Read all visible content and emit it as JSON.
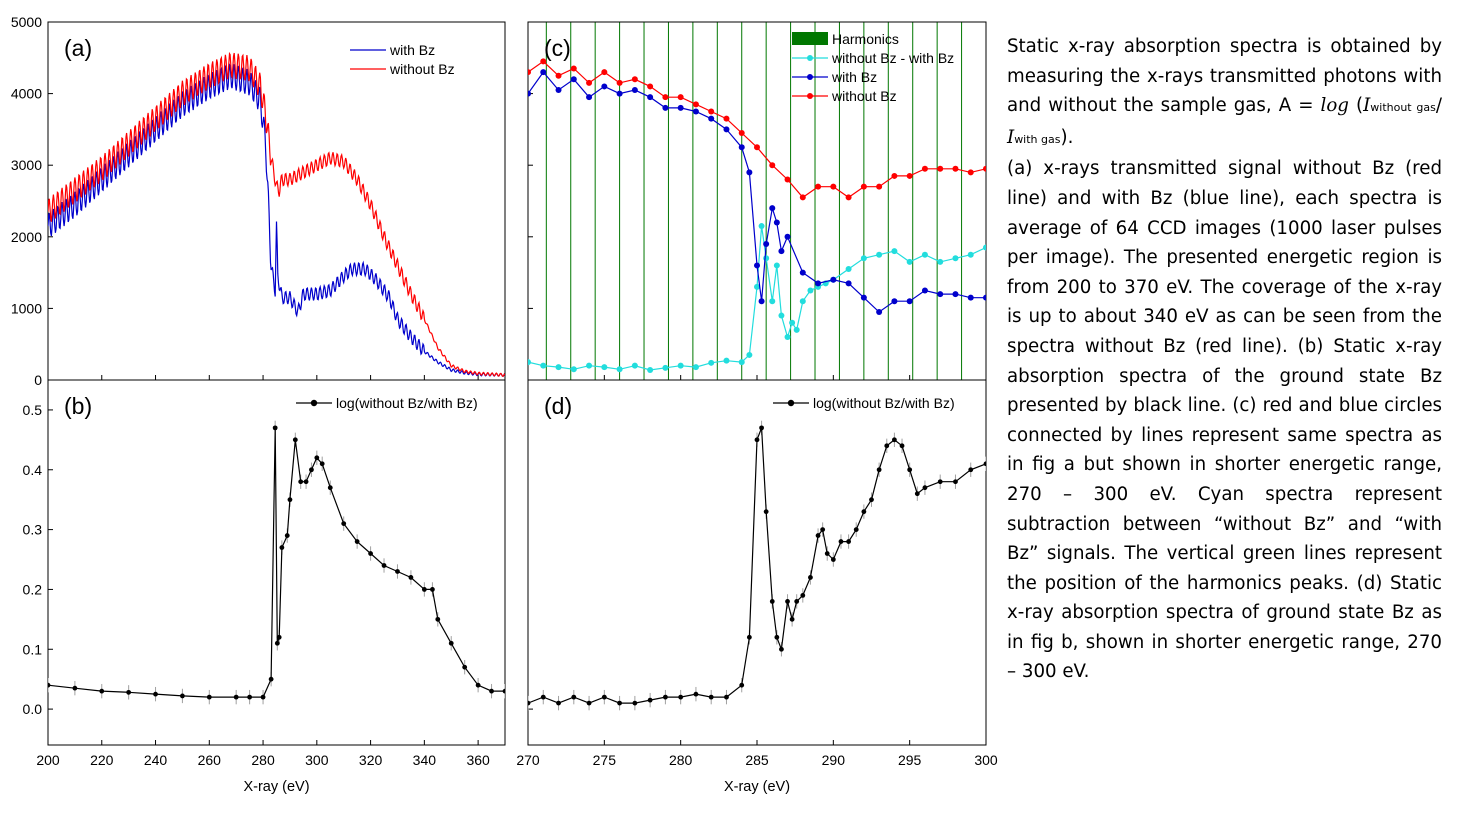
{
  "chart_data": [
    {
      "panel": "(a)",
      "type": "line",
      "xlim": [
        200,
        370
      ],
      "ylim": [
        0,
        5000
      ],
      "yticks": [
        "0",
        "1000",
        "2000",
        "3000",
        "4000",
        "5000"
      ],
      "xticks": [],
      "grid": false,
      "legend_placement": "top-right",
      "series": [
        {
          "name": "with Bz",
          "color": "#0000cc",
          "x": [
            200,
            210,
            220,
            230,
            240,
            250,
            260,
            268,
            275,
            279,
            281,
            283,
            284.5,
            285,
            285.5,
            287,
            290,
            293,
            295,
            300,
            305,
            310,
            313,
            318,
            322,
            327,
            330,
            335,
            340,
            345,
            350,
            355,
            360,
            370
          ],
          "y": [
            2150,
            2450,
            2800,
            3150,
            3500,
            3850,
            4100,
            4250,
            4150,
            3900,
            3300,
            1600,
            1250,
            2150,
            1450,
            1150,
            1150,
            950,
            1200,
            1200,
            1250,
            1450,
            1550,
            1550,
            1400,
            1150,
            850,
            600,
            400,
            250,
            140,
            100,
            80,
            70
          ]
        },
        {
          "name": "without Bz",
          "color": "#ff0000",
          "x": [
            200,
            210,
            220,
            230,
            240,
            250,
            260,
            268,
            275,
            279,
            281,
            283,
            285,
            286,
            287,
            290,
            295,
            300,
            305,
            310,
            315,
            320,
            325,
            330,
            335,
            340,
            345,
            350,
            355,
            360,
            370
          ],
          "y": [
            2350,
            2650,
            2950,
            3300,
            3650,
            4000,
            4250,
            4400,
            4350,
            4100,
            3700,
            3100,
            2700,
            2650,
            2800,
            2800,
            2900,
            3000,
            3100,
            3050,
            2800,
            2450,
            2000,
            1600,
            1200,
            850,
            450,
            200,
            120,
            90,
            70
          ]
        }
      ]
    },
    {
      "panel": "(b)",
      "type": "line",
      "xlim": [
        200,
        370
      ],
      "ylim": [
        -0.06,
        0.55
      ],
      "xticks": [
        "200",
        "220",
        "240",
        "260",
        "280",
        "300",
        "320",
        "340",
        "360"
      ],
      "yticks": [
        "0.0",
        "0.1",
        "0.2",
        "0.3",
        "0.4",
        "0.5"
      ],
      "xlabel": "X-ray (eV)",
      "grid": false,
      "legend_placement": "top-right",
      "series": [
        {
          "name": "log(without Bz/with Bz)",
          "color": "#000000",
          "x": [
            200,
            210,
            220,
            230,
            240,
            250,
            260,
            270,
            275,
            280,
            283,
            284.5,
            285.3,
            286,
            287,
            289,
            290,
            292,
            294,
            296,
            298,
            300,
            302,
            305,
            310,
            315,
            320,
            325,
            330,
            335,
            340,
            343,
            345,
            350,
            355,
            360,
            365,
            370
          ],
          "y": [
            0.04,
            0.035,
            0.03,
            0.028,
            0.025,
            0.022,
            0.02,
            0.02,
            0.02,
            0.02,
            0.05,
            0.47,
            0.11,
            0.12,
            0.27,
            0.29,
            0.35,
            0.45,
            0.38,
            0.38,
            0.4,
            0.42,
            0.41,
            0.37,
            0.31,
            0.28,
            0.26,
            0.24,
            0.23,
            0.22,
            0.2,
            0.2,
            0.15,
            0.11,
            0.07,
            0.04,
            0.03,
            0.03
          ]
        }
      ]
    },
    {
      "panel": "(c)",
      "type": "line",
      "xlim": [
        270,
        300
      ],
      "xticks": [],
      "grid": false,
      "legend_placement": "top-right",
      "harmonics_color": "#007700",
      "harmonics_x": [
        271.2,
        272.8,
        274.4,
        276.0,
        277.6,
        279.2,
        280.8,
        282.4,
        284.0,
        285.6,
        287.2,
        288.8,
        290.4,
        292.0,
        293.6,
        295.2,
        296.8,
        298.4,
        300.0
      ],
      "series": [
        {
          "name": "Harmonics",
          "color": "#007700",
          "type": "harmonic-lines"
        },
        {
          "name": "without Bz - with Bz",
          "color": "#22dddd",
          "x": [
            270,
            271,
            272,
            273,
            274,
            275,
            276,
            277,
            278,
            279,
            280,
            281,
            282,
            283,
            284,
            284.5,
            285,
            285.3,
            285.6,
            286,
            286.3,
            286.6,
            287,
            287.3,
            287.6,
            288,
            288.5,
            289,
            289.5,
            290,
            291,
            292,
            293,
            294,
            295,
            296,
            297,
            298,
            299,
            300
          ],
          "y": [
            250,
            200,
            180,
            150,
            200,
            180,
            150,
            200,
            140,
            170,
            200,
            180,
            240,
            270,
            250,
            350,
            1300,
            2150,
            1700,
            1100,
            1600,
            900,
            600,
            800,
            700,
            1100,
            1250,
            1300,
            1350,
            1400,
            1550,
            1700,
            1750,
            1800,
            1650,
            1750,
            1650,
            1700,
            1750,
            1850
          ]
        },
        {
          "name": "with Bz",
          "color": "#0000cc",
          "x": [
            270,
            271,
            272,
            273,
            274,
            275,
            276,
            277,
            278,
            279,
            280,
            281,
            282,
            283,
            284,
            284.5,
            285,
            285.3,
            285.6,
            286,
            286.3,
            286.6,
            287,
            288,
            289,
            290,
            291,
            292,
            293,
            294,
            295,
            296,
            297,
            298,
            299,
            300
          ],
          "y": [
            4000,
            4300,
            4050,
            4200,
            3950,
            4100,
            4000,
            4050,
            3950,
            3800,
            3800,
            3750,
            3650,
            3500,
            3250,
            2900,
            1600,
            1100,
            1900,
            2400,
            2200,
            1800,
            2000,
            1500,
            1350,
            1400,
            1350,
            1150,
            950,
            1100,
            1100,
            1250,
            1200,
            1200,
            1150,
            1150
          ]
        },
        {
          "name": "without Bz",
          "color": "#ff0000",
          "x": [
            270,
            271,
            272,
            273,
            274,
            275,
            276,
            277,
            278,
            279,
            280,
            281,
            282,
            283,
            284,
            285,
            286,
            287,
            288,
            289,
            290,
            291,
            292,
            293,
            294,
            295,
            296,
            297,
            298,
            299,
            300
          ],
          "y": [
            4300,
            4450,
            4250,
            4350,
            4150,
            4300,
            4150,
            4200,
            4100,
            3950,
            3950,
            3850,
            3750,
            3650,
            3450,
            3250,
            3000,
            2800,
            2550,
            2700,
            2700,
            2550,
            2700,
            2700,
            2850,
            2850,
            2950,
            2950,
            2950,
            2900,
            2950
          ]
        }
      ]
    },
    {
      "panel": "(d)",
      "type": "line",
      "xlim": [
        270,
        300
      ],
      "ylim": [
        -0.06,
        0.55
      ],
      "xticks": [
        "270",
        "275",
        "280",
        "285",
        "290",
        "295",
        "300"
      ],
      "xlabel": "X-ray (eV)",
      "grid": false,
      "legend_placement": "top-right",
      "series": [
        {
          "name": "log(without Bz/with Bz)",
          "color": "#000000",
          "x": [
            270,
            271,
            272,
            273,
            274,
            275,
            276,
            277,
            278,
            279,
            280,
            281,
            282,
            283,
            284,
            284.5,
            285,
            285.3,
            285.6,
            286,
            286.3,
            286.6,
            287,
            287.3,
            287.6,
            288,
            288.5,
            289,
            289.3,
            289.6,
            290,
            290.5,
            291,
            291.5,
            292,
            292.5,
            293,
            293.5,
            294,
            294.5,
            295,
            295.5,
            296,
            297,
            298,
            299,
            300
          ],
          "y": [
            0.01,
            0.02,
            0.01,
            0.02,
            0.01,
            0.02,
            0.01,
            0.01,
            0.015,
            0.02,
            0.02,
            0.025,
            0.02,
            0.02,
            0.04,
            0.12,
            0.45,
            0.47,
            0.33,
            0.18,
            0.12,
            0.1,
            0.18,
            0.15,
            0.18,
            0.19,
            0.22,
            0.29,
            0.3,
            0.26,
            0.25,
            0.28,
            0.28,
            0.3,
            0.33,
            0.35,
            0.4,
            0.44,
            0.45,
            0.44,
            0.4,
            0.36,
            0.37,
            0.38,
            0.38,
            0.4,
            0.41
          ]
        }
      ]
    }
  ],
  "panel_labels": {
    "a": "(a)",
    "b": "(b)",
    "c": "(c)",
    "d": "(d)"
  },
  "caption": {
    "line1": "Static x-ray absorption spectra is obtained by measuring the x-rays transmitted photons with and without the sample gas,",
    "formula_prefix": "A = ",
    "formula_log": "log",
    "formula_I": "I",
    "formula_sub1": "without gas",
    "formula_sep": "/ ",
    "formula_sub2": "with gas",
    "formula_suffix": ").",
    "body": "(a) x-rays transmitted signal without Bz (red line) and with Bz (blue line), each spectra is average of 64 CCD images (1000 laser pulses per image). The presented energetic region is from 200 to 370 eV. The coverage of the x-ray is up to about 340 eV as can be seen from the spectra without Bz (red line). (b) Static x-ray absorption spectra of the ground state Bz presented by black line. (c) red and blue circles connected by lines represent same spectra as in fig a but shown in shorter energetic range, 270 – 300 eV. Cyan spectra represent subtraction between “without Bz” and “with Bz” signals. The vertical green  lines represent the position of the harmonics peaks. (d) Static x-ray absorption spectra of ground state Bz as in fig b, shown in shorter energetic range, 270 – 300 eV."
  }
}
